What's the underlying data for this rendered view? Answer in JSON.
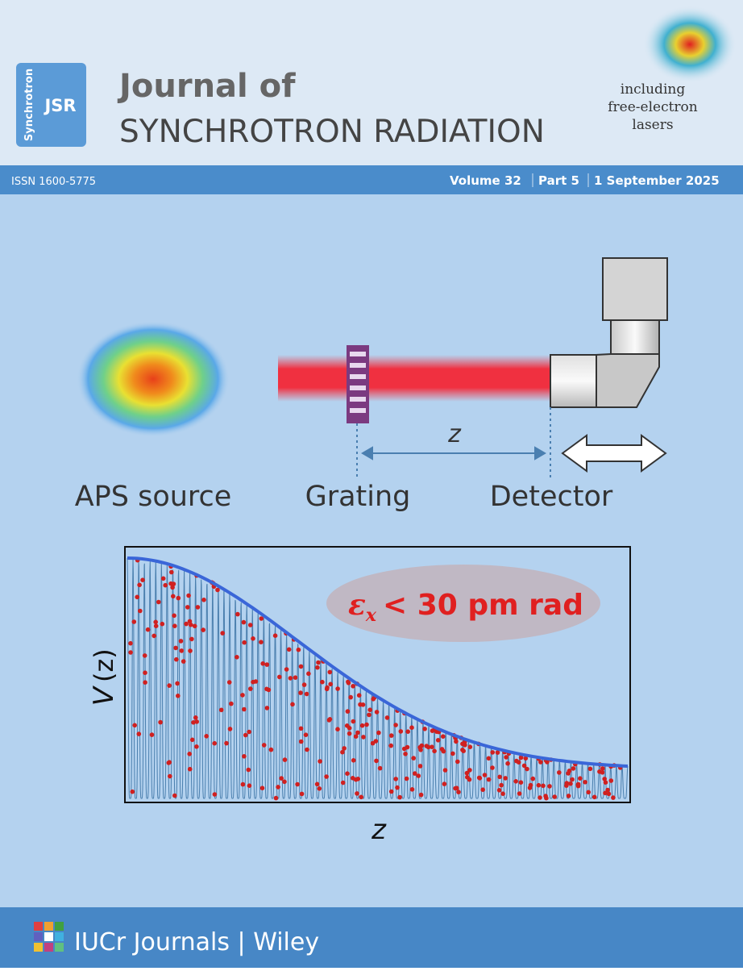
{
  "header": {
    "logo_side": "Synchrotron",
    "logo": "JSR",
    "title_line1": "Journal of",
    "title_line2": "SYNCHROTRON RADIATION",
    "badge": [
      "including",
      "free-electron",
      "lasers"
    ]
  },
  "issue_bar": {
    "issn": "ISSN 1600-5775",
    "volume": "Volume 32",
    "part": "Part 5",
    "date": "1 September 2025"
  },
  "diagram": {
    "source": "APS source",
    "grating": "Grating",
    "detector": "Detector",
    "distance": "z"
  },
  "plot": {
    "y_label_v": "V",
    "y_label_z": "(z)",
    "x_label": "z",
    "callout_symbol": "ε",
    "callout_sub": "x",
    "callout_text": "< 30 pm rad"
  },
  "footer": {
    "publisher": "IUCr Journals | Wiley"
  }
}
